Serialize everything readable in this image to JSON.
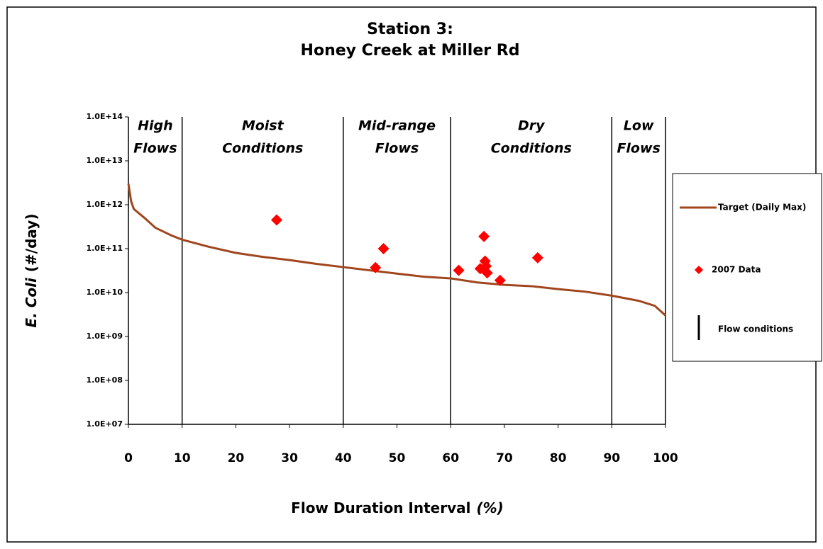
{
  "chart_data": {
    "type": "line",
    "title": [
      "Station 3:",
      "Honey Creek at Miller Rd"
    ],
    "xlabel": [
      "Flow Duration Interval",
      "(%)"
    ],
    "ylabel": [
      "E. Coli",
      "(#/day)"
    ],
    "xlim": [
      0,
      100
    ],
    "xticks": [
      0,
      10,
      20,
      30,
      40,
      50,
      60,
      70,
      80,
      90,
      100
    ],
    "ylim": [
      10000000,
      100000000000000
    ],
    "log_y": true,
    "yticks": [
      {
        "value": 10000000,
        "label": "1.0E+07"
      },
      {
        "value": 100000000,
        "label": "1.0E+08"
      },
      {
        "value": 1000000000,
        "label": "1.0E+09"
      },
      {
        "value": 10000000000,
        "label": "1.0E+10"
      },
      {
        "value": 100000000000,
        "label": "1.0E+11"
      },
      {
        "value": 1000000000000,
        "label": "1.0E+12"
      },
      {
        "value": 10000000000000,
        "label": "1.0E+13"
      },
      {
        "value": 100000000000000,
        "label": "1.0E+14"
      }
    ],
    "series": [
      {
        "name": "Target (Daily Max)",
        "color": "#a0461e",
        "kind": "line",
        "x": [
          0,
          0.5,
          1,
          3,
          5,
          8,
          10,
          15,
          20,
          25,
          30,
          35,
          40,
          45,
          50,
          55,
          60,
          65,
          70,
          75,
          80,
          85,
          90,
          95,
          98,
          100
        ],
        "values": [
          3000000000000,
          1200000000000,
          800000000000,
          500000000000,
          300000000000,
          200000000000,
          160000000000,
          110000000000,
          80000000000,
          65000000000,
          55000000000,
          45000000000,
          38000000000,
          32000000000,
          27000000000,
          23000000000,
          21000000000,
          17000000000,
          15000000000,
          14000000000,
          12000000000,
          10500000000,
          8500000000,
          6500000000,
          5000000000,
          3000000000
        ]
      },
      {
        "name": "2007 Data",
        "color": "#ff0000",
        "kind": "scatter",
        "x": [
          27.6,
          46,
          47.5,
          61.5,
          65.5,
          66.2,
          66.4,
          66.6,
          66.8,
          69.2,
          76.2
        ],
        "values": [
          450000000000,
          37000000000,
          100000000000,
          32000000000,
          35000000000,
          190000000000,
          52000000000,
          40000000000,
          28000000000,
          19000000000,
          62000000000
        ]
      }
    ],
    "flow_conditions": {
      "name": "Flow conditions",
      "color": "#000000",
      "x": [
        10,
        40,
        60,
        90
      ]
    },
    "regions": [
      [
        "High",
        "Flows"
      ],
      [
        "Moist",
        "Conditions"
      ],
      [
        "Mid-range",
        "Flows"
      ],
      [
        "Dry",
        "Conditions"
      ],
      [
        "Low",
        "Flows"
      ]
    ]
  }
}
